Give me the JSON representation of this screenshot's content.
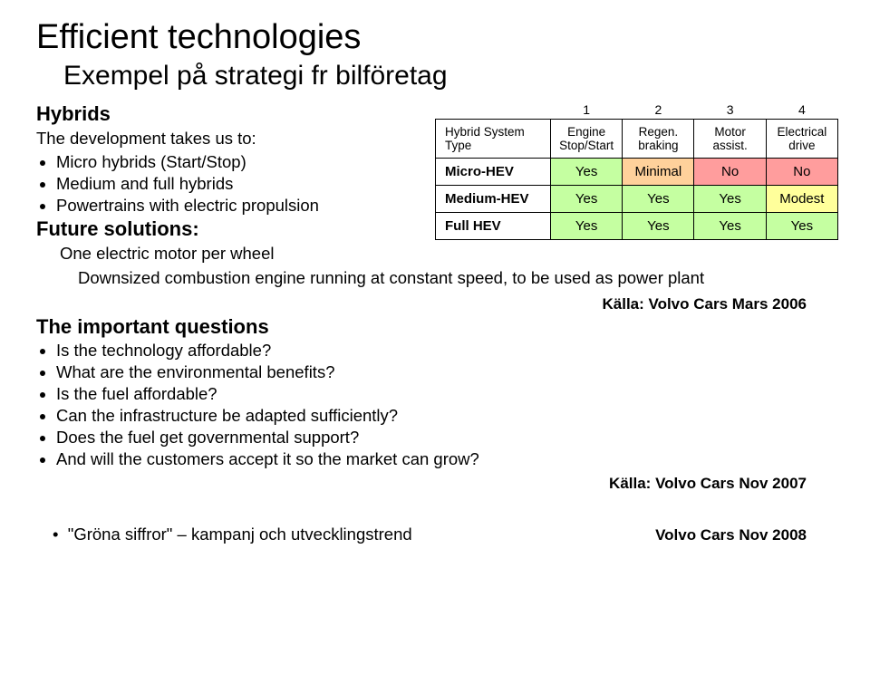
{
  "title": "Efficient technologies",
  "subtitle": "Exempel på strategi fr bilföretag",
  "hybrids": {
    "heading": "Hybrids",
    "dev_intro": "The development takes us to:",
    "items": [
      "Micro hybrids (Start/Stop)",
      "Medium and full hybrids",
      "Powertrains with electric propulsion"
    ],
    "future_heading": "Future solutions:",
    "future_item": "One electric motor per wheel",
    "downsized": "Downsized combustion engine running at constant speed, to be used as power plant"
  },
  "questions": {
    "heading": "The important questions",
    "items": [
      "Is the technology affordable?",
      "What are the environmental benefits?",
      "Is the fuel affordable?",
      "Can the infrastructure be adapted sufficiently?",
      "Does the fuel get governmental support?",
      "And will the customers accept it so the market can grow?"
    ]
  },
  "sources": {
    "mars2006": "Källa: Volvo Cars Mars 2006",
    "nov2007": "Källa: Volvo Cars Nov 2007",
    "nov2008": "Volvo Cars Nov 2008"
  },
  "campaign_bullet": "•",
  "campaign": "\"Gröna siffror\" – kampanj och utvecklingstrend",
  "table": {
    "nums": [
      "1",
      "2",
      "3",
      "4"
    ],
    "header_left": "Hybrid System Type",
    "headers": [
      "Engine\nStop/Start",
      "Regen.\nbraking",
      "Motor\nassist.",
      "Electrical\ndrive"
    ],
    "rows": [
      {
        "label": "Micro-HEV",
        "cells": [
          "Yes",
          "Minimal",
          "No",
          "No"
        ],
        "colors": [
          "#c5ffa1",
          "#ffd19b",
          "#ff9d9d",
          "#ff9d9d"
        ]
      },
      {
        "label": "Medium-HEV",
        "cells": [
          "Yes",
          "Yes",
          "Yes",
          "Modest"
        ],
        "colors": [
          "#c5ffa1",
          "#c5ffa1",
          "#c5ffa1",
          "#ffff9b"
        ]
      },
      {
        "label": "Full HEV",
        "cells": [
          "Yes",
          "Yes",
          "Yes",
          "Yes"
        ],
        "colors": [
          "#c5ffa1",
          "#c5ffa1",
          "#c5ffa1",
          "#c5ffa1"
        ]
      }
    ]
  }
}
